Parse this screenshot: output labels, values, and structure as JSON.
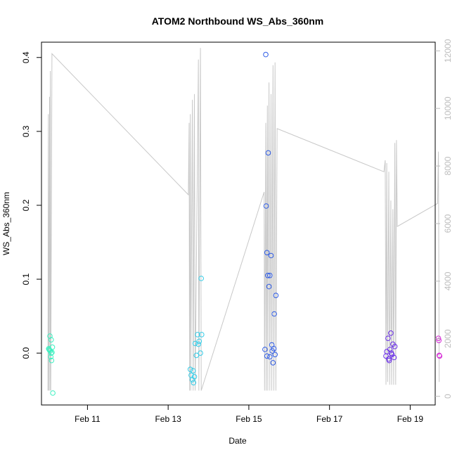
{
  "chart_data": {
    "type": "scatter",
    "title": "ATOM2 Northbound WS_Abs_360nm",
    "xlabel": "Date",
    "ylabel": "WS_Abs_360nm",
    "ylim": [
      -0.0702,
      0.4207
    ],
    "xlim_days": [
      9.86,
      19.62
    ],
    "y2lim": [
      -300,
      12300
    ],
    "x_ticks": [
      {
        "label": "Feb 11",
        "day": 11
      },
      {
        "label": "Feb 13",
        "day": 13
      },
      {
        "label": "Feb 15",
        "day": 15
      },
      {
        "label": "Feb 17",
        "day": 17
      },
      {
        "label": "Feb 19",
        "day": 19
      }
    ],
    "y_ticks": [
      "0.0",
      "0.1",
      "0.2",
      "0.3",
      "0.4"
    ],
    "y_tick_values": [
      0.0,
      0.1,
      0.2,
      0.3,
      0.4
    ],
    "y2_ticks": [
      "0",
      "2000",
      "4000",
      "6000",
      "8000",
      "10000",
      "12000"
    ],
    "y2_tick_values": [
      0,
      2000,
      4000,
      6000,
      8000,
      10000,
      12000
    ],
    "points": [
      {
        "day": 10.05,
        "value": 0.005,
        "color": "#3cf0c0"
      },
      {
        "day": 10.06,
        "value": 0.004,
        "color": "#3cf0c0"
      },
      {
        "day": 10.07,
        "value": 0.023,
        "color": "#3cf0c0"
      },
      {
        "day": 10.08,
        "value": 0.003,
        "color": "#3cf0c0"
      },
      {
        "day": 10.09,
        "value": -0.005,
        "color": "#3cf0c0"
      },
      {
        "day": 10.1,
        "value": 0.018,
        "color": "#3cf0c0"
      },
      {
        "day": 10.11,
        "value": -0.01,
        "color": "#3cf0c0"
      },
      {
        "day": 10.12,
        "value": 0.001,
        "color": "#3cf0c0"
      },
      {
        "day": 10.13,
        "value": 0.008,
        "color": "#3cf0c0"
      },
      {
        "day": 10.14,
        "value": -0.054,
        "color": "#3cf0c0"
      },
      {
        "day": 10.04,
        "value": 0.006,
        "color": "#3cf0c0"
      },
      {
        "day": 10.1,
        "value": 0.0,
        "color": "#3cf0c0"
      },
      {
        "day": 13.55,
        "value": -0.022,
        "color": "#34cde8"
      },
      {
        "day": 13.57,
        "value": -0.03,
        "color": "#34cde8"
      },
      {
        "day": 13.6,
        "value": -0.036,
        "color": "#34cde8"
      },
      {
        "day": 13.62,
        "value": -0.024,
        "color": "#34cde8"
      },
      {
        "day": 13.63,
        "value": -0.04,
        "color": "#34cde8"
      },
      {
        "day": 13.65,
        "value": -0.032,
        "color": "#34cde8"
      },
      {
        "day": 13.67,
        "value": 0.013,
        "color": "#34cde8"
      },
      {
        "day": 13.7,
        "value": -0.003,
        "color": "#34cde8"
      },
      {
        "day": 13.73,
        "value": 0.025,
        "color": "#34cde8"
      },
      {
        "day": 13.75,
        "value": 0.012,
        "color": "#34cde8"
      },
      {
        "day": 13.77,
        "value": 0.016,
        "color": "#34cde8"
      },
      {
        "day": 13.8,
        "value": 0.0,
        "color": "#34cde8"
      },
      {
        "day": 13.82,
        "value": 0.101,
        "color": "#34cde8"
      },
      {
        "day": 13.83,
        "value": 0.025,
        "color": "#34cde8"
      },
      {
        "day": 15.42,
        "value": 0.404,
        "color": "#2e5ce6"
      },
      {
        "day": 15.43,
        "value": 0.199,
        "color": "#2e5ce6"
      },
      {
        "day": 15.45,
        "value": 0.136,
        "color": "#2e5ce6"
      },
      {
        "day": 15.47,
        "value": 0.105,
        "color": "#2e5ce6"
      },
      {
        "day": 15.48,
        "value": 0.271,
        "color": "#2e5ce6"
      },
      {
        "day": 15.5,
        "value": 0.09,
        "color": "#2e5ce6"
      },
      {
        "day": 15.52,
        "value": 0.105,
        "color": "#2e5ce6"
      },
      {
        "day": 15.55,
        "value": 0.132,
        "color": "#2e5ce6"
      },
      {
        "day": 15.57,
        "value": 0.011,
        "color": "#2e5ce6"
      },
      {
        "day": 15.6,
        "value": -0.013,
        "color": "#2e5ce6"
      },
      {
        "day": 15.63,
        "value": 0.053,
        "color": "#2e5ce6"
      },
      {
        "day": 15.67,
        "value": 0.078,
        "color": "#2e5ce6"
      },
      {
        "day": 15.4,
        "value": 0.005,
        "color": "#2e5ce6"
      },
      {
        "day": 15.52,
        "value": -0.005,
        "color": "#2e5ce6"
      },
      {
        "day": 15.58,
        "value": 0.003,
        "color": "#2e5ce6"
      },
      {
        "day": 15.65,
        "value": -0.002,
        "color": "#2e5ce6"
      },
      {
        "day": 15.62,
        "value": 0.006,
        "color": "#2e5ce6"
      },
      {
        "day": 15.45,
        "value": -0.004,
        "color": "#2e5ce6"
      },
      {
        "day": 18.4,
        "value": -0.004,
        "color": "#6a2ee8"
      },
      {
        "day": 18.42,
        "value": 0.002,
        "color": "#6a2ee8"
      },
      {
        "day": 18.45,
        "value": 0.02,
        "color": "#6a2ee8"
      },
      {
        "day": 18.47,
        "value": -0.008,
        "color": "#6a2ee8"
      },
      {
        "day": 18.5,
        "value": 0.005,
        "color": "#6a2ee8"
      },
      {
        "day": 18.52,
        "value": 0.027,
        "color": "#6a2ee8"
      },
      {
        "day": 18.55,
        "value": -0.002,
        "color": "#6a2ee8"
      },
      {
        "day": 18.57,
        "value": 0.012,
        "color": "#6a2ee8"
      },
      {
        "day": 18.6,
        "value": -0.006,
        "color": "#6a2ee8"
      },
      {
        "day": 18.62,
        "value": 0.009,
        "color": "#6a2ee8"
      },
      {
        "day": 18.48,
        "value": -0.01,
        "color": "#6a2ee8"
      },
      {
        "day": 18.53,
        "value": 0.0,
        "color": "#6a2ee8"
      },
      {
        "day": 19.7,
        "value": 0.02,
        "color": "#d62ed6"
      },
      {
        "day": 19.71,
        "value": 0.017,
        "color": "#d62ed6"
      },
      {
        "day": 19.72,
        "value": -0.003,
        "color": "#d62ed6"
      },
      {
        "day": 19.73,
        "value": -0.004,
        "color": "#d62ed6"
      }
    ],
    "line_series": {
      "name": "secondary series (right axis)",
      "color": "#c8c8c8",
      "points": [
        [
          10.02,
          200
        ],
        [
          10.03,
          9800
        ],
        [
          10.04,
          200
        ],
        [
          10.06,
          10400
        ],
        [
          10.07,
          200
        ],
        [
          10.08,
          11300
        ],
        [
          10.09,
          200
        ],
        [
          10.12,
          11900
        ],
        [
          13.5,
          7000
        ],
        [
          13.52,
          9500
        ],
        [
          13.53,
          200
        ],
        [
          13.55,
          9800
        ],
        [
          13.56,
          200
        ],
        [
          13.6,
          10300
        ],
        [
          13.62,
          200
        ],
        [
          13.65,
          10500
        ],
        [
          13.67,
          200
        ],
        [
          13.75,
          11700
        ],
        [
          13.76,
          200
        ],
        [
          13.8,
          12100
        ],
        [
          13.82,
          200
        ],
        [
          15.38,
          7100
        ],
        [
          15.39,
          200
        ],
        [
          15.42,
          9500
        ],
        [
          15.43,
          200
        ],
        [
          15.46,
          10100
        ],
        [
          15.47,
          200
        ],
        [
          15.5,
          10900
        ],
        [
          15.52,
          200
        ],
        [
          15.55,
          10500
        ],
        [
          15.57,
          200
        ],
        [
          15.6,
          11500
        ],
        [
          15.62,
          200
        ],
        [
          15.65,
          11600
        ],
        [
          15.67,
          200
        ],
        [
          15.7,
          9300
        ],
        [
          18.35,
          7800
        ],
        [
          18.38,
          8200
        ],
        [
          18.4,
          400
        ],
        [
          18.42,
          8100
        ],
        [
          18.44,
          500
        ],
        [
          18.47,
          7800
        ],
        [
          18.49,
          400
        ],
        [
          18.52,
          6800
        ],
        [
          18.54,
          400
        ],
        [
          18.57,
          6500
        ],
        [
          18.59,
          400
        ],
        [
          18.62,
          8800
        ],
        [
          18.64,
          400
        ],
        [
          18.66,
          8900
        ],
        [
          18.68,
          5900
        ],
        [
          19.68,
          6700
        ],
        [
          19.7,
          8500
        ],
        [
          19.72,
          500
        ]
      ]
    }
  }
}
